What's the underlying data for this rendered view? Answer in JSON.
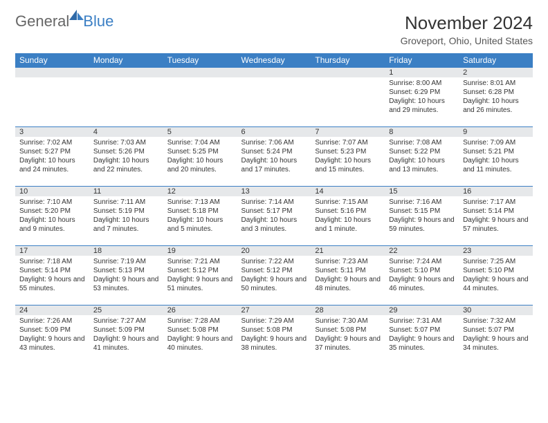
{
  "logo": {
    "general": "General",
    "blue": "Blue"
  },
  "title": "November 2024",
  "location": "Groveport, Ohio, United States",
  "colors": {
    "header_bg": "#3b7fc4",
    "daynum_bg": "#e6e8ea",
    "border": "#3b7fc4",
    "text": "#333333",
    "logo_gray": "#666666",
    "logo_blue": "#3b7fc4"
  },
  "weekdays": [
    "Sunday",
    "Monday",
    "Tuesday",
    "Wednesday",
    "Thursday",
    "Friday",
    "Saturday"
  ],
  "weeks": [
    [
      null,
      null,
      null,
      null,
      null,
      {
        "d": "1",
        "sr": "8:00 AM",
        "ss": "6:29 PM",
        "dl": "10 hours and 29 minutes."
      },
      {
        "d": "2",
        "sr": "8:01 AM",
        "ss": "6:28 PM",
        "dl": "10 hours and 26 minutes."
      }
    ],
    [
      {
        "d": "3",
        "sr": "7:02 AM",
        "ss": "5:27 PM",
        "dl": "10 hours and 24 minutes."
      },
      {
        "d": "4",
        "sr": "7:03 AM",
        "ss": "5:26 PM",
        "dl": "10 hours and 22 minutes."
      },
      {
        "d": "5",
        "sr": "7:04 AM",
        "ss": "5:25 PM",
        "dl": "10 hours and 20 minutes."
      },
      {
        "d": "6",
        "sr": "7:06 AM",
        "ss": "5:24 PM",
        "dl": "10 hours and 17 minutes."
      },
      {
        "d": "7",
        "sr": "7:07 AM",
        "ss": "5:23 PM",
        "dl": "10 hours and 15 minutes."
      },
      {
        "d": "8",
        "sr": "7:08 AM",
        "ss": "5:22 PM",
        "dl": "10 hours and 13 minutes."
      },
      {
        "d": "9",
        "sr": "7:09 AM",
        "ss": "5:21 PM",
        "dl": "10 hours and 11 minutes."
      }
    ],
    [
      {
        "d": "10",
        "sr": "7:10 AM",
        "ss": "5:20 PM",
        "dl": "10 hours and 9 minutes."
      },
      {
        "d": "11",
        "sr": "7:11 AM",
        "ss": "5:19 PM",
        "dl": "10 hours and 7 minutes."
      },
      {
        "d": "12",
        "sr": "7:13 AM",
        "ss": "5:18 PM",
        "dl": "10 hours and 5 minutes."
      },
      {
        "d": "13",
        "sr": "7:14 AM",
        "ss": "5:17 PM",
        "dl": "10 hours and 3 minutes."
      },
      {
        "d": "14",
        "sr": "7:15 AM",
        "ss": "5:16 PM",
        "dl": "10 hours and 1 minute."
      },
      {
        "d": "15",
        "sr": "7:16 AM",
        "ss": "5:15 PM",
        "dl": "9 hours and 59 minutes."
      },
      {
        "d": "16",
        "sr": "7:17 AM",
        "ss": "5:14 PM",
        "dl": "9 hours and 57 minutes."
      }
    ],
    [
      {
        "d": "17",
        "sr": "7:18 AM",
        "ss": "5:14 PM",
        "dl": "9 hours and 55 minutes."
      },
      {
        "d": "18",
        "sr": "7:19 AM",
        "ss": "5:13 PM",
        "dl": "9 hours and 53 minutes."
      },
      {
        "d": "19",
        "sr": "7:21 AM",
        "ss": "5:12 PM",
        "dl": "9 hours and 51 minutes."
      },
      {
        "d": "20",
        "sr": "7:22 AM",
        "ss": "5:12 PM",
        "dl": "9 hours and 50 minutes."
      },
      {
        "d": "21",
        "sr": "7:23 AM",
        "ss": "5:11 PM",
        "dl": "9 hours and 48 minutes."
      },
      {
        "d": "22",
        "sr": "7:24 AM",
        "ss": "5:10 PM",
        "dl": "9 hours and 46 minutes."
      },
      {
        "d": "23",
        "sr": "7:25 AM",
        "ss": "5:10 PM",
        "dl": "9 hours and 44 minutes."
      }
    ],
    [
      {
        "d": "24",
        "sr": "7:26 AM",
        "ss": "5:09 PM",
        "dl": "9 hours and 43 minutes."
      },
      {
        "d": "25",
        "sr": "7:27 AM",
        "ss": "5:09 PM",
        "dl": "9 hours and 41 minutes."
      },
      {
        "d": "26",
        "sr": "7:28 AM",
        "ss": "5:08 PM",
        "dl": "9 hours and 40 minutes."
      },
      {
        "d": "27",
        "sr": "7:29 AM",
        "ss": "5:08 PM",
        "dl": "9 hours and 38 minutes."
      },
      {
        "d": "28",
        "sr": "7:30 AM",
        "ss": "5:08 PM",
        "dl": "9 hours and 37 minutes."
      },
      {
        "d": "29",
        "sr": "7:31 AM",
        "ss": "5:07 PM",
        "dl": "9 hours and 35 minutes."
      },
      {
        "d": "30",
        "sr": "7:32 AM",
        "ss": "5:07 PM",
        "dl": "9 hours and 34 minutes."
      }
    ]
  ],
  "labels": {
    "sunrise": "Sunrise:",
    "sunset": "Sunset:",
    "daylight": "Daylight:"
  }
}
